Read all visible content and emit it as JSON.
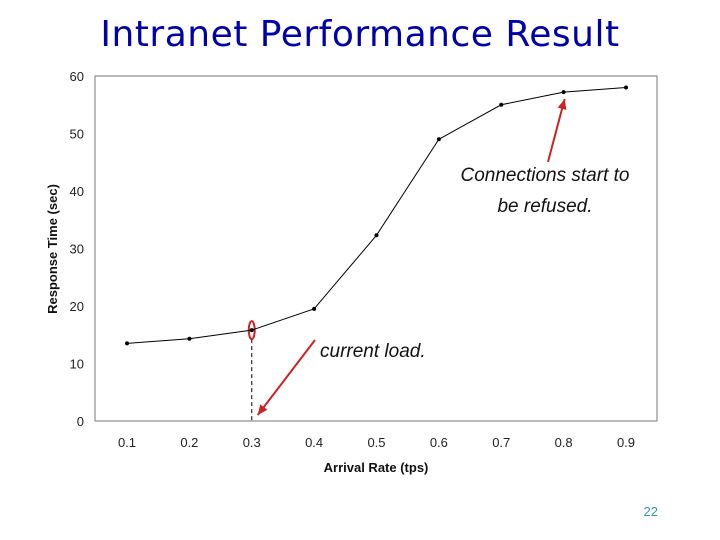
{
  "slide": {
    "title": "Intranet Performance Result",
    "number": "22"
  },
  "chart_data": {
    "type": "line",
    "x": [
      0.1,
      0.2,
      0.3,
      0.4,
      0.5,
      0.6,
      0.7,
      0.8,
      0.9
    ],
    "x_tick_labels": [
      "0.1",
      "0.2",
      "0.3",
      "0.4",
      "0.5",
      "0.6",
      "0.7",
      "0.8",
      "0.9"
    ],
    "series": [
      {
        "values": [
          13.5,
          14.3,
          15.8,
          19.5,
          32.3,
          49,
          55,
          57.2,
          58
        ]
      }
    ],
    "xlabel": "Arrival Rate (tps)",
    "ylabel": "Response Time (sec)",
    "ylim": [
      0,
      60
    ],
    "y_ticks": [
      0,
      10,
      20,
      30,
      40,
      50,
      60
    ],
    "grid": false,
    "line_color": "#000000",
    "annotations": [
      {
        "text": "Connections start to",
        "text2": "be refused.",
        "x": 0.8,
        "y": 57.2
      },
      {
        "text": "current load.",
        "x": 0.3,
        "y": 15.8
      }
    ],
    "annotation_arrow_color": "#cc2222"
  }
}
